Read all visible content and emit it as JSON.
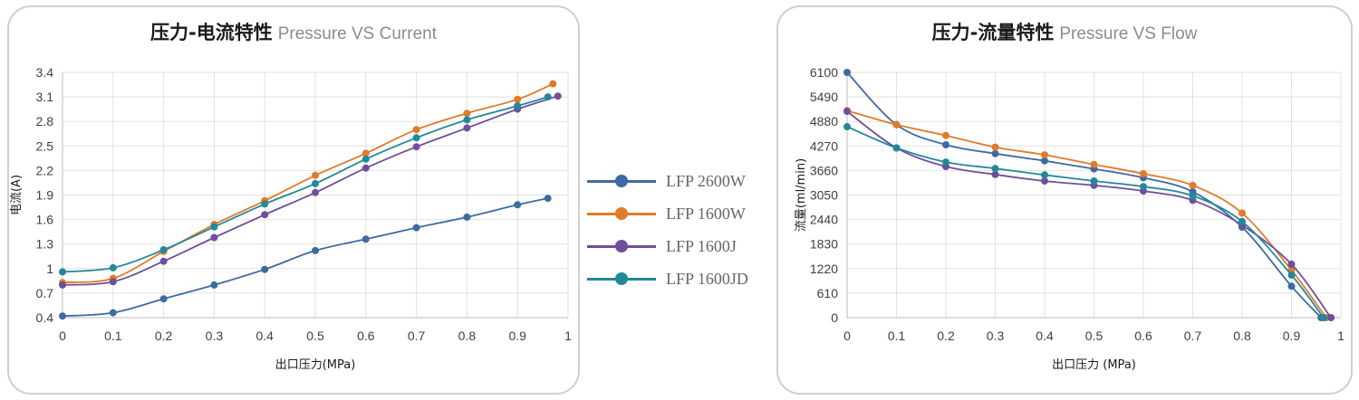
{
  "chart_data": [
    {
      "type": "line",
      "title_cn": "压力-电流特性",
      "title_en": "Pressure VS Current",
      "xlabel": "出口压力(MPa)",
      "ylabel": "电流(A)",
      "xlim": [
        0,
        1
      ],
      "ylim": [
        0.4,
        3.4
      ],
      "xticks": [
        "0",
        "0.1",
        "0.2",
        "0.3",
        "0.4",
        "0.5",
        "0.6",
        "0.7",
        "0.8",
        "0.9",
        "1"
      ],
      "yticks": [
        "0.4",
        "0.7",
        "1",
        "1.3",
        "1.6",
        "1.9",
        "2.2",
        "2.5",
        "2.8",
        "3.1",
        "3.4"
      ],
      "grid": true,
      "series": [
        {
          "name": "LFP 2600W",
          "color": "#3d6aa1",
          "x": [
            0,
            0.1,
            0.2,
            0.3,
            0.4,
            0.5,
            0.6,
            0.7,
            0.8,
            0.9,
            0.96
          ],
          "y": [
            0.42,
            0.46,
            0.63,
            0.8,
            0.99,
            1.22,
            1.36,
            1.5,
            1.63,
            1.78,
            1.86
          ]
        },
        {
          "name": "LFP 1600W",
          "color": "#e07b2a",
          "x": [
            0,
            0.1,
            0.2,
            0.3,
            0.4,
            0.5,
            0.6,
            0.7,
            0.8,
            0.9,
            0.97
          ],
          "y": [
            0.83,
            0.88,
            1.21,
            1.54,
            1.83,
            2.14,
            2.41,
            2.7,
            2.9,
            3.07,
            3.26
          ]
        },
        {
          "name": "LFP 1600J",
          "color": "#6f4f9c",
          "x": [
            0,
            0.1,
            0.2,
            0.3,
            0.4,
            0.5,
            0.6,
            0.7,
            0.8,
            0.9,
            0.98
          ],
          "y": [
            0.8,
            0.84,
            1.09,
            1.38,
            1.66,
            1.93,
            2.23,
            2.49,
            2.72,
            2.95,
            3.11
          ]
        },
        {
          "name": "LFP 1600JD",
          "color": "#23889a",
          "x": [
            0,
            0.1,
            0.2,
            0.3,
            0.4,
            0.5,
            0.6,
            0.7,
            0.8,
            0.9,
            0.96
          ],
          "y": [
            0.96,
            1.01,
            1.23,
            1.51,
            1.79,
            2.04,
            2.34,
            2.6,
            2.82,
            2.99,
            3.1
          ]
        }
      ],
      "legend": "right"
    },
    {
      "type": "line",
      "title_cn": "压力-流量特性",
      "title_en": "Pressure VS Flow",
      "xlabel": "出口压力 (MPa)",
      "ylabel": "流量(ml/min)",
      "xlim": [
        0,
        1
      ],
      "ylim": [
        0,
        6100
      ],
      "xticks": [
        "0",
        "0.1",
        "0.2",
        "0.3",
        "0.4",
        "0.5",
        "0.6",
        "0.7",
        "0.8",
        "0.9",
        "1"
      ],
      "yticks": [
        "0",
        "610",
        "1220",
        "1830",
        "2440",
        "3050",
        "3660",
        "4270",
        "4880",
        "5490",
        "6100"
      ],
      "grid": true,
      "series": [
        {
          "name": "LFP 2600W",
          "color": "#3d6aa1",
          "x": [
            0,
            0.1,
            0.2,
            0.3,
            0.4,
            0.5,
            0.6,
            0.7,
            0.8,
            0.9,
            0.96
          ],
          "y": [
            6100,
            4800,
            4300,
            4080,
            3900,
            3700,
            3480,
            3130,
            2250,
            780,
            0
          ]
        },
        {
          "name": "LFP 1600W",
          "color": "#e07b2a",
          "x": [
            0,
            0.1,
            0.2,
            0.3,
            0.4,
            0.5,
            0.6,
            0.7,
            0.8,
            0.9,
            0.97
          ],
          "y": [
            5150,
            4800,
            4530,
            4240,
            4050,
            3810,
            3580,
            3290,
            2600,
            1180,
            0
          ]
        },
        {
          "name": "LFP 1600J",
          "color": "#6f4f9c",
          "x": [
            0,
            0.1,
            0.2,
            0.3,
            0.4,
            0.5,
            0.6,
            0.7,
            0.8,
            0.9,
            0.98
          ],
          "y": [
            5130,
            4220,
            3760,
            3560,
            3400,
            3290,
            3150,
            2920,
            2300,
            1330,
            0
          ]
        },
        {
          "name": "LFP 1600JD",
          "color": "#23889a",
          "x": [
            0,
            0.1,
            0.2,
            0.3,
            0.4,
            0.5,
            0.6,
            0.7,
            0.8,
            0.9,
            0.965
          ],
          "y": [
            4750,
            4220,
            3870,
            3710,
            3550,
            3400,
            3260,
            3030,
            2390,
            1060,
            0
          ]
        }
      ]
    }
  ]
}
